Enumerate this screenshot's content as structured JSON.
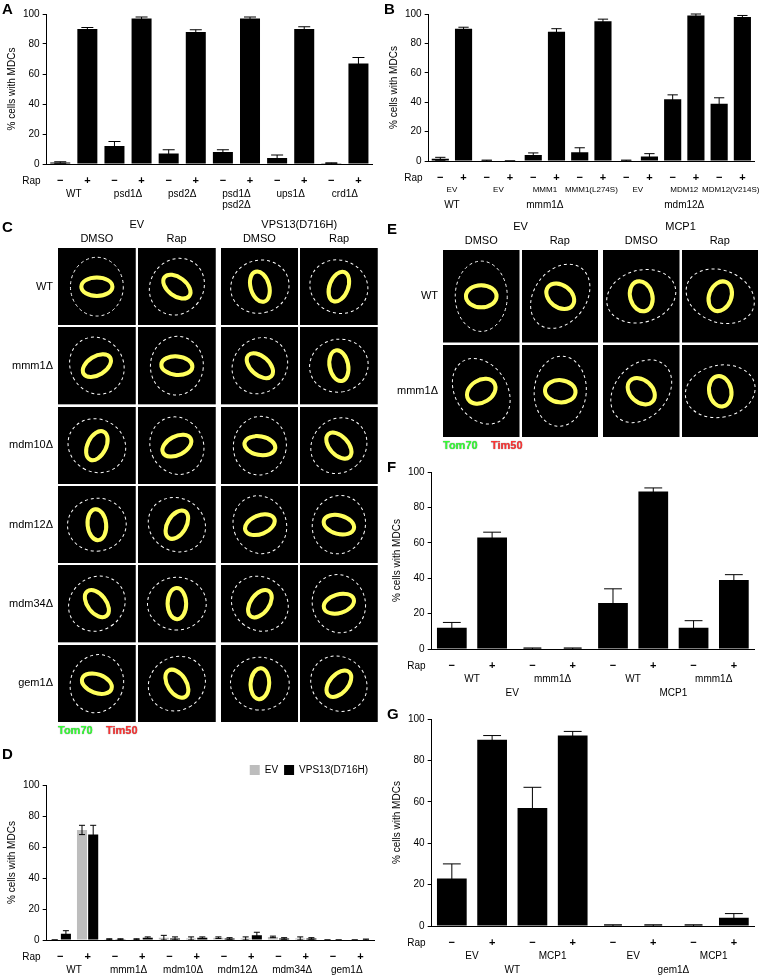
{
  "chart_data": [
    {
      "type": "bar",
      "panel_label": "A",
      "y_label": "% cells with MDCs",
      "ylim": [
        0,
        100
      ],
      "yticks": [
        0,
        20,
        40,
        60,
        80,
        100
      ],
      "row_titles": [
        "Rap"
      ],
      "color": "#000000",
      "categories": [
        [
          "−",
          "WT"
        ],
        [
          "+",
          "WT"
        ],
        [
          "−",
          "psd1Δ"
        ],
        [
          "+",
          "psd1Δ"
        ],
        [
          "−",
          "psd2Δ"
        ],
        [
          "+",
          "psd2Δ"
        ],
        [
          "−",
          [
            "psd1Δ",
            "psd2Δ"
          ]
        ],
        [
          "+",
          [
            "psd1Δ",
            "psd2Δ"
          ]
        ],
        [
          "−",
          "ups1Δ"
        ],
        [
          "+",
          "ups1Δ"
        ],
        [
          "−",
          "crd1Δ"
        ],
        [
          "+",
          "crd1Δ"
        ]
      ],
      "values": [
        1,
        90,
        12,
        97,
        7,
        88,
        8,
        97,
        4,
        90,
        0.5,
        67
      ],
      "errors": [
        0.5,
        1,
        3,
        1,
        2.5,
        1.5,
        1.5,
        1,
        2,
        1.5,
        0.3,
        4
      ]
    },
    {
      "type": "bar",
      "panel_label": "B",
      "y_label": "% cells with MDCs",
      "ylim": [
        0,
        100
      ],
      "yticks": [
        0,
        20,
        40,
        60,
        80,
        100
      ],
      "row_titles": [
        "Rap"
      ],
      "color": "#000000",
      "categories": [
        [
          "−",
          "EV",
          "WT"
        ],
        [
          "+",
          "EV",
          "WT"
        ],
        [
          "−",
          "EV",
          "mmm1Δ"
        ],
        [
          "+",
          "EV",
          "mmm1Δ"
        ],
        [
          "−",
          "MMM1",
          "mmm1Δ"
        ],
        [
          "+",
          "MMM1",
          "mmm1Δ"
        ],
        [
          "−",
          "MMM1(L274S)",
          "mmm1Δ"
        ],
        [
          "+",
          "MMM1(L274S)",
          "mmm1Δ"
        ],
        [
          "−",
          "EV",
          "mdm12Δ"
        ],
        [
          "+",
          "EV",
          "mdm12Δ"
        ],
        [
          "−",
          "MDM12",
          "mdm12Δ"
        ],
        [
          "+",
          "MDM12",
          "mdm12Δ"
        ],
        [
          "−",
          "MDM12(V214S)",
          "mdm12Δ"
        ],
        [
          "+",
          "MDM12(V214S)",
          "mdm12Δ"
        ]
      ],
      "values": [
        1.5,
        90,
        0.3,
        0,
        4,
        88,
        6,
        95,
        0.3,
        3,
        42,
        99,
        39,
        98
      ],
      "errors": [
        1,
        1,
        0.3,
        0,
        1.5,
        2,
        3,
        1.5,
        0.3,
        2,
        3,
        1,
        4,
        1
      ]
    },
    {
      "type": "bar",
      "panel_label": "D",
      "y_label": "% cells with MDCs",
      "ylim": [
        0,
        100
      ],
      "yticks": [
        0,
        20,
        40,
        60,
        80,
        100
      ],
      "row_titles": [
        "Rap"
      ],
      "legend": "top-right",
      "categories": [
        [
          "−",
          "WT"
        ],
        [
          "+",
          "WT"
        ],
        [
          "−",
          "mmm1Δ"
        ],
        [
          "+",
          "mmm1Δ"
        ],
        [
          "−",
          "mdm10Δ"
        ],
        [
          "+",
          "mdm10Δ"
        ],
        [
          "−",
          "mdm12Δ"
        ],
        [
          "+",
          "mdm12Δ"
        ],
        [
          "−",
          "mdm34Δ"
        ],
        [
          "+",
          "mdm34Δ"
        ],
        [
          "−",
          "gem1Δ"
        ],
        [
          "+",
          "gem1Δ"
        ]
      ],
      "series": [
        {
          "name": "EV",
          "color": "#bdbdbd",
          "values": [
            0,
            71,
            0.5,
            0.5,
            1.5,
            1,
            1.5,
            1,
            2,
            1,
            0,
            0
          ],
          "errors": [
            0,
            3,
            0.3,
            0.3,
            1.5,
            1,
            0.5,
            1,
            0.5,
            1,
            0,
            0
          ]
        },
        {
          "name": "VPS13(D716H)",
          "color": "#000000",
          "values": [
            4,
            68,
            0.5,
            1.5,
            1,
            1.5,
            1,
            3,
            1,
            1,
            0,
            0.3
          ],
          "errors": [
            2,
            6,
            0.3,
            0.5,
            1,
            0.5,
            0.5,
            2,
            0.5,
            0.5,
            0,
            0.3
          ]
        }
      ]
    },
    {
      "type": "bar",
      "panel_label": "F",
      "y_label": "% cells with MDCs",
      "ylim": [
        0,
        100
      ],
      "yticks": [
        0,
        20,
        40,
        60,
        80,
        100
      ],
      "row_titles": [
        "Rap"
      ],
      "color": "#000000",
      "categories": [
        [
          "−",
          "WT",
          "EV"
        ],
        [
          "+",
          "WT",
          "EV"
        ],
        [
          "−",
          "mmm1Δ",
          "EV"
        ],
        [
          "+",
          "mmm1Δ",
          "EV"
        ],
        [
          "−",
          "WT",
          "MCP1"
        ],
        [
          "+",
          "WT",
          "MCP1"
        ],
        [
          "−",
          "mmm1Δ",
          "MCP1"
        ],
        [
          "+",
          "mmm1Δ",
          "MCP1"
        ]
      ],
      "values": [
        12,
        63,
        0.3,
        0.3,
        26,
        89,
        12,
        39
      ],
      "errors": [
        3,
        3,
        0.3,
        0.3,
        8,
        2,
        4,
        3
      ]
    },
    {
      "type": "bar",
      "panel_label": "G",
      "y_label": "% cells with MDCs",
      "ylim": [
        0,
        100
      ],
      "yticks": [
        0,
        20,
        40,
        60,
        80,
        100
      ],
      "row_titles": [
        "Rap"
      ],
      "color": "#000000",
      "categories": [
        [
          "−",
          "EV",
          "WT"
        ],
        [
          "+",
          "EV",
          "WT"
        ],
        [
          "−",
          "MCP1",
          "WT"
        ],
        [
          "+",
          "MCP1",
          "WT"
        ],
        [
          "−",
          "EV",
          "gem1Δ"
        ],
        [
          "+",
          "EV",
          "gem1Δ"
        ],
        [
          "−",
          "MCP1",
          "gem1Δ"
        ],
        [
          "+",
          "MCP1",
          "gem1Δ"
        ]
      ],
      "values": [
        23,
        90,
        57,
        92,
        0.3,
        0.3,
        0.3,
        4
      ],
      "errors": [
        7,
        2,
        10,
        2,
        0.3,
        0.3,
        0.3,
        2
      ]
    }
  ],
  "images": [
    {
      "panel_label": "C",
      "column_groups": [
        {
          "label": "EV",
          "columns": [
            "DMSO",
            "Rap"
          ]
        },
        {
          "label": "VPS13(D716H)",
          "columns": [
            "DMSO",
            "Rap"
          ]
        }
      ],
      "rows": [
        "WT",
        "mmm1Δ",
        "mdm10Δ",
        "mdm12Δ",
        "mdm34Δ",
        "gem1Δ"
      ],
      "channels": [
        {
          "name": "Tom70",
          "color": "#33ff33"
        },
        {
          "name": "Tim50",
          "color": "#ff3333"
        }
      ]
    },
    {
      "panel_label": "E",
      "column_groups": [
        {
          "label": "EV",
          "columns": [
            "DMSO",
            "Rap"
          ]
        },
        {
          "label": "MCP1",
          "columns": [
            "DMSO",
            "Rap"
          ]
        }
      ],
      "rows": [
        "WT",
        "mmm1Δ"
      ],
      "channels": [
        {
          "name": "Tom70",
          "color": "#33ff33"
        },
        {
          "name": "Tim50",
          "color": "#ff3333"
        }
      ]
    }
  ]
}
